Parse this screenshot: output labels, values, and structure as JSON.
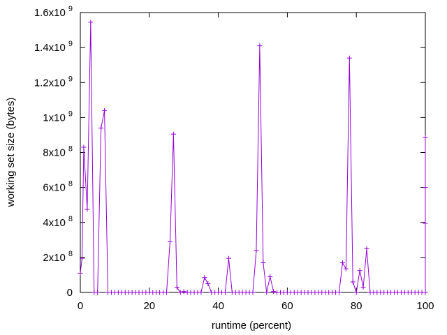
{
  "chart_data": {
    "type": "line",
    "xlabel": "runtime (percent)",
    "ylabel": "working set size (bytes)",
    "xlim": [
      0,
      100
    ],
    "ylim": [
      0,
      1600000000
    ],
    "grid": false,
    "legend": "none",
    "line_color": "#9400d3",
    "x_ticks": [
      {
        "value": 0,
        "label": "0"
      },
      {
        "value": 20,
        "label": "20"
      },
      {
        "value": 40,
        "label": "40"
      },
      {
        "value": 60,
        "label": "60"
      },
      {
        "value": 80,
        "label": "80"
      },
      {
        "value": 100,
        "label": "100"
      }
    ],
    "y_ticks": [
      {
        "value": 0,
        "base": "0",
        "exp": ""
      },
      {
        "value": 200000000,
        "base": "2x10",
        "exp": "8"
      },
      {
        "value": 400000000,
        "base": "4x10",
        "exp": "8"
      },
      {
        "value": 600000000,
        "base": "6x10",
        "exp": "8"
      },
      {
        "value": 800000000,
        "base": "8x10",
        "exp": "8"
      },
      {
        "value": 1000000000,
        "base": "1x10",
        "exp": "9"
      },
      {
        "value": 1200000000,
        "base": "1.2x10",
        "exp": "9"
      },
      {
        "value": 1400000000,
        "base": "1.4x10",
        "exp": "9"
      },
      {
        "value": 1600000000,
        "base": "1.6x10",
        "exp": "9"
      }
    ],
    "series": [
      {
        "x": [
          0,
          0.5,
          1,
          2,
          3,
          4,
          5,
          6,
          7,
          8,
          9,
          10,
          11,
          12,
          13,
          14,
          15,
          16,
          17,
          18,
          19,
          20,
          21,
          22,
          23,
          24,
          25,
          26,
          27,
          28,
          29,
          30,
          31,
          32,
          33,
          34,
          35,
          36,
          37,
          38,
          39,
          40,
          41,
          42,
          43,
          44,
          45,
          46,
          47,
          48,
          49,
          50,
          51,
          52,
          53,
          54,
          55,
          56,
          57,
          58,
          59,
          60,
          61,
          62,
          63,
          64,
          65,
          66,
          67,
          68,
          69,
          70,
          71,
          72,
          73,
          74,
          75,
          76,
          77,
          78,
          79,
          80,
          81,
          82,
          83,
          84,
          85,
          86,
          87,
          88,
          89,
          90,
          91,
          92,
          93,
          94,
          95,
          96,
          97,
          98,
          99,
          100,
          100,
          100,
          100
        ],
        "y": [
          110000000,
          195000000,
          830000000,
          475000000,
          1545000000,
          0,
          0,
          940000000,
          1040000000,
          0,
          0,
          0,
          0,
          0,
          0,
          0,
          0,
          0,
          0,
          0,
          0,
          0,
          0,
          0,
          0,
          0,
          0,
          290000000,
          905000000,
          30000000,
          0,
          5000000,
          0,
          0,
          0,
          0,
          0,
          85000000,
          50000000,
          0,
          0,
          0,
          0,
          0,
          195000000,
          0,
          0,
          0,
          0,
          0,
          0,
          0,
          240000000,
          1410000000,
          170000000,
          0,
          90000000,
          5000000,
          0,
          0,
          0,
          0,
          0,
          0,
          0,
          0,
          0,
          0,
          0,
          0,
          0,
          0,
          0,
          0,
          0,
          0,
          0,
          170000000,
          135000000,
          1340000000,
          60000000,
          0,
          125000000,
          30000000,
          250000000,
          0,
          0,
          0,
          0,
          0,
          0,
          0,
          0,
          0,
          0,
          0,
          0,
          0,
          0,
          0,
          0,
          0,
          395000000,
          600000000,
          885000000
        ]
      }
    ]
  }
}
